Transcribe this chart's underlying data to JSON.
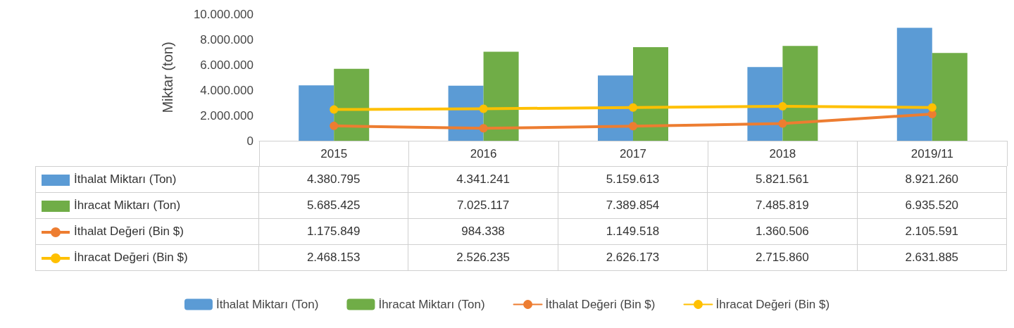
{
  "chart_data": {
    "type": "bar",
    "ylabel": "Miktar (ton)",
    "categories": [
      "2015",
      "2016",
      "2017",
      "2018",
      "2019/11"
    ],
    "series": [
      {
        "name": "İthalat Miktarı (Ton)",
        "color": "#5b9bd5",
        "values": [
          4380795,
          4341241,
          5159613,
          5821561,
          8921260
        ],
        "value_labels": [
          "4.380.795",
          "4.341.241",
          "5.159.613",
          "5.821.561",
          "8.921.260"
        ]
      },
      {
        "name": "İhracat Miktarı (Ton)",
        "color": "#70ad47",
        "values": [
          5685425,
          7025117,
          7389854,
          7485819,
          6935520
        ],
        "value_labels": [
          "5.685.425",
          "7.025.117",
          "7.389.854",
          "7.485.819",
          "6.935.520"
        ]
      },
      {
        "name": "İthalat Değeri (Bin $)",
        "type": "line",
        "color": "#ed7d31",
        "values": [
          1175849,
          984338,
          1149518,
          1360506,
          2105591
        ],
        "value_labels": [
          "1.175.849",
          "984.338",
          "1.149.518",
          "1.360.506",
          "2.105.591"
        ]
      },
      {
        "name": "İhracat Değeri (Bin $)",
        "type": "line",
        "color": "#ffc000",
        "values": [
          2468153,
          2526235,
          2626173,
          2715860,
          2631885
        ],
        "value_labels": [
          "2.468.153",
          "2.526.235",
          "2.626.173",
          "2.715.860",
          "2.631.885"
        ]
      }
    ],
    "ylim": [
      0,
      10000000
    ],
    "yticks": [
      0,
      {
        "value": 2000000,
        "label": "2.000.000"
      },
      {
        "value": 4000000,
        "label": "4.000.000"
      },
      {
        "value": 6000000,
        "label": "6.000.000"
      },
      {
        "value": 8000000,
        "label": "8.000.000"
      },
      {
        "value": 10000000,
        "label": "10.000.000"
      }
    ],
    "grid": false,
    "legend": "bottom",
    "marker": "circle",
    "line_style": "solid"
  }
}
